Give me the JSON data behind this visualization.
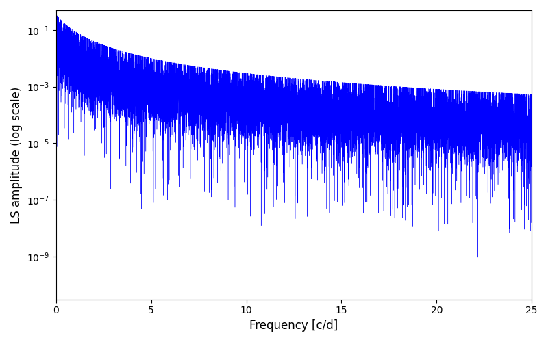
{
  "line_color": "#0000ff",
  "xlabel": "Frequency [c/d]",
  "ylabel": "LS amplitude (log scale)",
  "xlim": [
    0,
    25
  ],
  "ylim": [
    3e-11,
    0.5
  ],
  "xticks": [
    0,
    5,
    10,
    15,
    20,
    25
  ],
  "ytick_locs": [
    1e-09,
    1e-07,
    1e-05,
    0.001,
    0.1
  ],
  "figsize": [
    8.0,
    5.0
  ],
  "dpi": 100,
  "bg_color": "#ffffff",
  "seed": 777,
  "n_points": 15000,
  "A0": 0.12,
  "alpha_upper": 2.0,
  "alpha_lower": 3.5,
  "noise_sigma_upper": 1.2,
  "noise_sigma_lower": 3.5
}
